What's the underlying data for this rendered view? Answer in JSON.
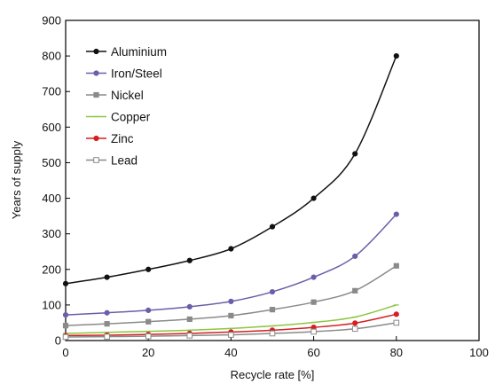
{
  "chart_data": {
    "type": "line",
    "title": "",
    "xlabel": "Recycle rate [%]",
    "ylabel": "Years of supply",
    "xlim": [
      0,
      100
    ],
    "ylim": [
      0,
      900
    ],
    "xticks": [
      "0",
      "20",
      "40",
      "60",
      "80",
      "100"
    ],
    "yticks": [
      "0",
      "100",
      "200",
      "300",
      "400",
      "500",
      "600",
      "700",
      "800",
      "900"
    ],
    "grid": false,
    "legend_position": "top-left",
    "x": [
      0,
      10,
      20,
      30,
      40,
      50,
      60,
      70,
      80
    ],
    "series": [
      {
        "name": "Aluminium",
        "color": "#111111",
        "marker": "circle",
        "values": [
          160,
          178,
          200,
          225,
          258,
          320,
          400,
          525,
          800
        ]
      },
      {
        "name": "Iron/Steel",
        "color": "#6a5fa8",
        "marker": "circle",
        "values": [
          72,
          78,
          85,
          95,
          110,
          137,
          178,
          237,
          355
        ]
      },
      {
        "name": "Nickel",
        "color": "#8a8a8a",
        "marker": "square",
        "values": [
          42,
          47,
          53,
          60,
          70,
          87,
          108,
          140,
          210
        ]
      },
      {
        "name": "Copper",
        "color": "#8cc63f",
        "marker": "line",
        "values": [
          20,
          23,
          26,
          29,
          34,
          41,
          51,
          66,
          100
        ]
      },
      {
        "name": "Zinc",
        "color": "#d42020",
        "marker": "circle",
        "values": [
          14,
          15,
          17,
          20,
          24,
          29,
          37,
          49,
          74
        ]
      },
      {
        "name": "Lead",
        "color": "#8a8a8a",
        "marker": "open-square",
        "values": [
          10,
          11,
          12,
          14,
          16,
          20,
          25,
          33,
          50
        ]
      }
    ]
  }
}
